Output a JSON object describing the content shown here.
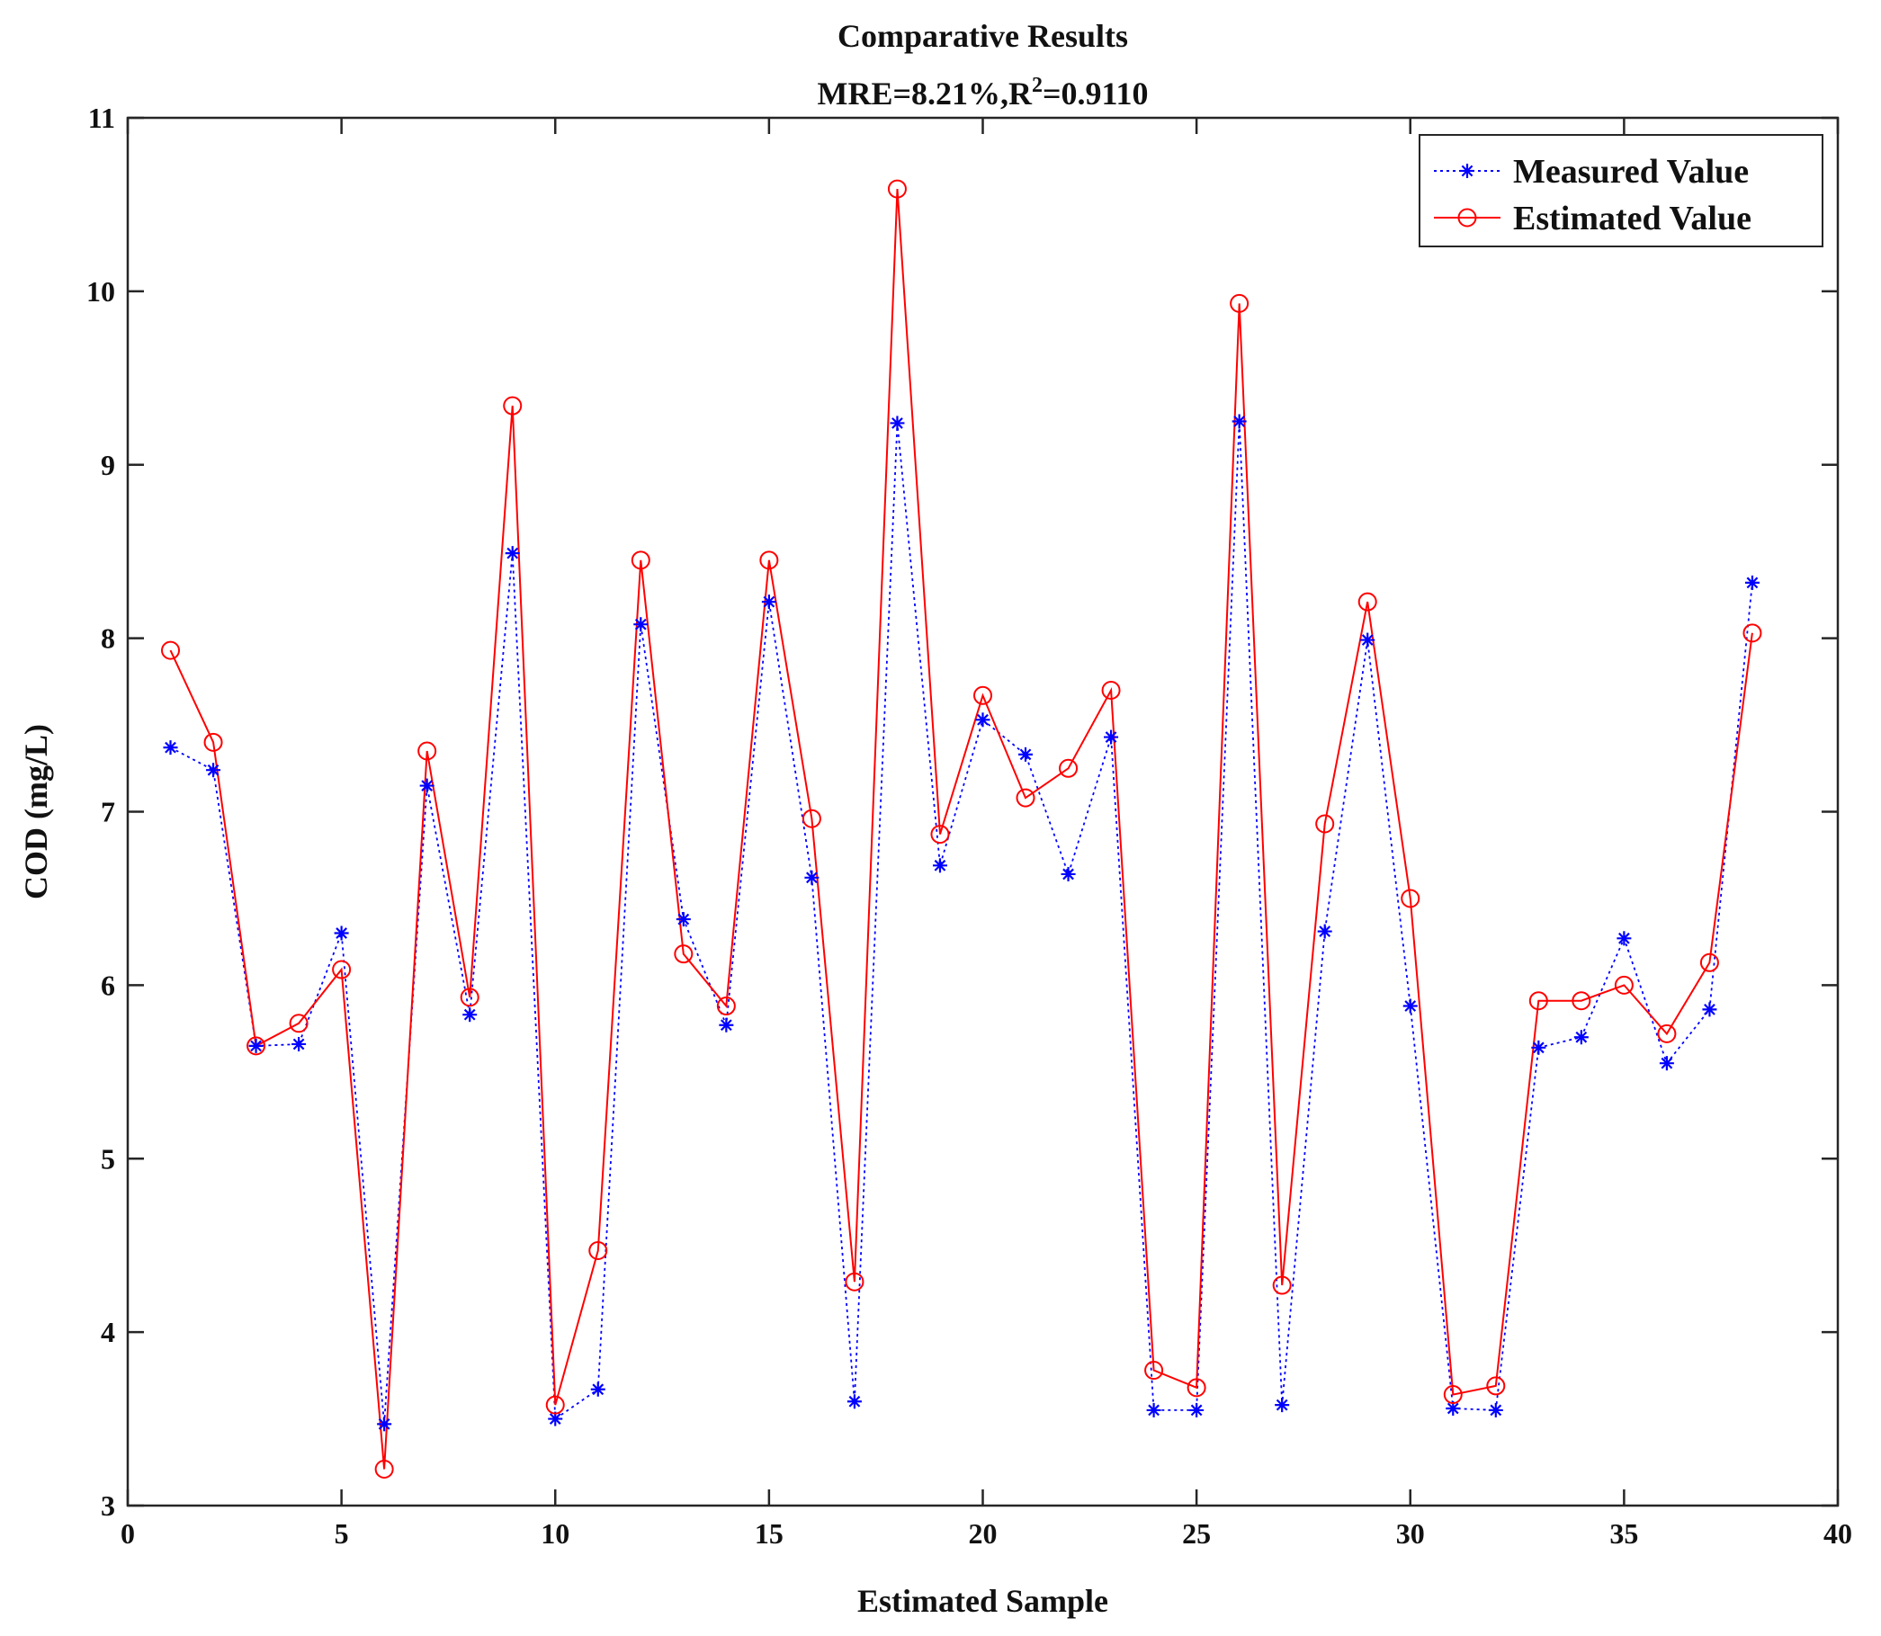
{
  "chart_data": {
    "type": "line",
    "title_line1": "Comparative Results",
    "title_line2_prefix": "MRE=8.21%,R",
    "title_line2_sup": "2",
    "title_line2_suffix": "=0.9110",
    "xlabel": "Estimated Sample",
    "ylabel": "COD (mg/L)",
    "xlim": [
      0,
      40
    ],
    "ylim": [
      3,
      11
    ],
    "xticks": [
      0,
      5,
      10,
      15,
      20,
      25,
      30,
      35,
      40
    ],
    "yticks": [
      3,
      4,
      5,
      6,
      7,
      8,
      9,
      10,
      11
    ],
    "grid": false,
    "legend_position": "top-right",
    "x": [
      1,
      2,
      3,
      4,
      5,
      6,
      7,
      8,
      9,
      10,
      11,
      12,
      13,
      14,
      15,
      16,
      17,
      18,
      19,
      20,
      21,
      22,
      23,
      24,
      25,
      26,
      27,
      28,
      29,
      30,
      31,
      32,
      33,
      34,
      35,
      36,
      37,
      38
    ],
    "series": [
      {
        "name": "Measured Value",
        "color": "#0000ff",
        "line_style": "dotted",
        "marker": "asterisk",
        "values": [
          7.37,
          7.24,
          5.65,
          5.66,
          6.3,
          3.47,
          7.15,
          5.83,
          8.49,
          3.5,
          3.67,
          8.08,
          6.38,
          5.77,
          8.21,
          6.62,
          3.6,
          9.24,
          6.69,
          7.53,
          7.33,
          6.64,
          7.43,
          3.55,
          3.55,
          9.25,
          3.58,
          6.31,
          7.99,
          5.88,
          3.56,
          3.55,
          5.64,
          5.7,
          6.27,
          5.55,
          5.86,
          8.32
        ]
      },
      {
        "name": "Estimated Value",
        "color": "#ff0000",
        "line_style": "solid",
        "marker": "circle",
        "values": [
          7.93,
          7.4,
          5.65,
          5.78,
          6.09,
          3.21,
          7.35,
          5.93,
          9.34,
          3.58,
          4.47,
          8.45,
          6.18,
          5.88,
          8.45,
          6.96,
          4.29,
          10.59,
          6.87,
          7.67,
          7.08,
          7.25,
          7.7,
          3.78,
          3.68,
          9.93,
          4.27,
          6.93,
          8.21,
          6.5,
          3.64,
          3.69,
          5.91,
          5.91,
          6.0,
          5.72,
          6.13,
          8.03
        ]
      }
    ]
  }
}
